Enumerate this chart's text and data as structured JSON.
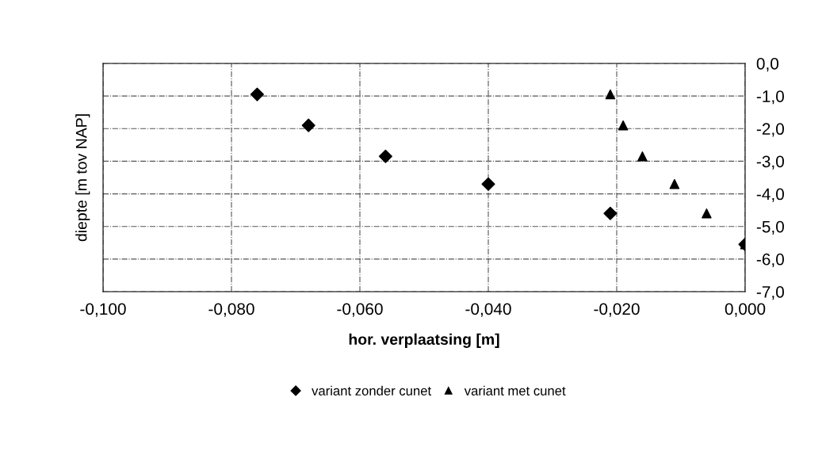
{
  "chart_data": {
    "type": "scatter",
    "xlabel": "hor. verplaatsing [m]",
    "ylabel": "diepte [m tov NAP]",
    "series": [
      {
        "name": "variant zonder cunet",
        "color": "#000000",
        "marker": "diamond",
        "x": [
          -0.076,
          -0.068,
          -0.056,
          -0.04,
          -0.021,
          0.0
        ],
        "values": [
          -0.95,
          -1.9,
          -2.85,
          -3.7,
          -4.6,
          -5.55
        ]
      },
      {
        "name": "variant met cunet",
        "color": "#000000",
        "marker": "triangle",
        "x": [
          -0.021,
          -0.019,
          -0.016,
          -0.011,
          -0.006,
          0.0
        ],
        "values": [
          -0.95,
          -1.9,
          -2.85,
          -3.7,
          -4.6,
          -5.55
        ]
      }
    ],
    "xlim": [
      -0.1,
      0.0
    ],
    "xticks": [
      {
        "value": -0.1,
        "label": "-0,100"
      },
      {
        "value": -0.08,
        "label": "-0,080"
      },
      {
        "value": -0.06,
        "label": "-0,060"
      },
      {
        "value": -0.04,
        "label": "-0,040"
      },
      {
        "value": -0.02,
        "label": "-0,020"
      },
      {
        "value": 0.0,
        "label": "0,000"
      }
    ],
    "ylim": [
      -7,
      0
    ],
    "yticks": [
      {
        "value": 0,
        "label": "0,0"
      },
      {
        "value": -1,
        "label": "-1,0"
      },
      {
        "value": -2,
        "label": "-2,0"
      },
      {
        "value": -3,
        "label": "-3,0"
      },
      {
        "value": -4,
        "label": "-4,0"
      },
      {
        "value": -5,
        "label": "-5,0"
      },
      {
        "value": -6,
        "label": "-6,0"
      },
      {
        "value": -7,
        "label": "-7,0"
      }
    ],
    "grid": true,
    "legend": "bottom"
  }
}
